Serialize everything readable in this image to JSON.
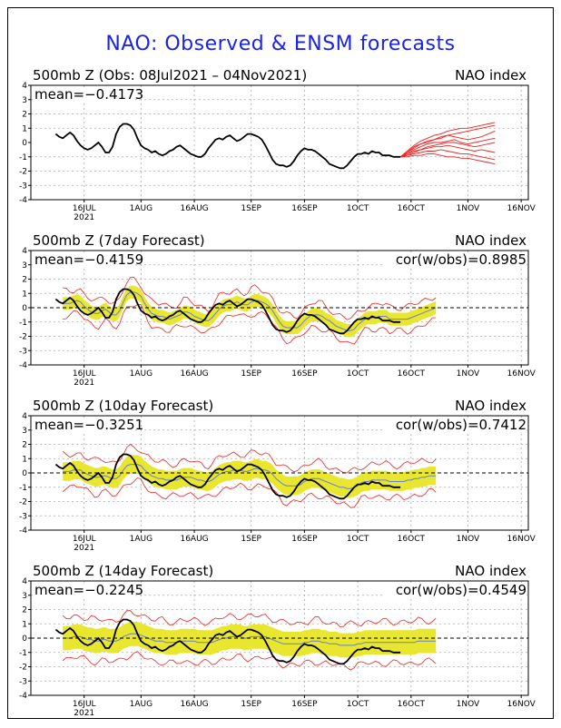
{
  "title": "NAO: Observed & ENSM forecasts",
  "colors": {
    "title": "#1a24e6",
    "observed": "#000000",
    "ensemble_spread": "#e8e62e",
    "ensemble_members": "#ee2222",
    "ensemble_mean": "#6a7fcf",
    "grid": "#aaaaaa"
  },
  "chart_data": [
    {
      "type": "line",
      "panel_title": "500mb  Z  (Obs: 08Jul2021 – 04Nov2021)",
      "right_label": "NAO index",
      "mean_label": "mean=−0.4173",
      "cor_label": "",
      "ylim": [
        -4,
        4
      ],
      "yticks": [
        4,
        3,
        2,
        1,
        0,
        -1,
        -2,
        -3,
        -4
      ],
      "xticks": [
        "16JUL",
        "1AUG",
        "16AUG",
        "1SEP",
        "16SEP",
        "1OCT",
        "16OCT",
        "1NOV",
        "16NOV"
      ],
      "year_label": "2021",
      "grid": true,
      "series": [
        {
          "values": [
            0.6,
            0.4,
            0.3,
            0.5,
            0.7,
            0.5,
            0.1,
            -0.2,
            -0.4,
            -0.5,
            -0.4,
            -0.2,
            0.0,
            -0.3,
            -0.7,
            -0.7,
            -0.3,
            0.6,
            1.1,
            1.3,
            1.3,
            1.2,
            0.9,
            0.3,
            -0.2,
            -0.4,
            -0.5,
            -0.7,
            -0.6,
            -0.8,
            -0.9,
            -0.8,
            -0.6,
            -0.5,
            -0.3,
            -0.2,
            -0.4,
            -0.6,
            -0.8,
            -0.9,
            -1.0,
            -1.0,
            -0.8,
            -0.4,
            -0.1,
            0.2,
            0.3,
            0.2,
            0.4,
            0.5,
            0.3,
            0.1,
            0.2,
            0.4,
            0.6,
            0.6,
            0.5,
            0.4,
            0.2,
            -0.2,
            -0.7,
            -1.2,
            -1.5,
            -1.6,
            -1.6,
            -1.7,
            -1.6,
            -1.3,
            -0.9,
            -0.6,
            -0.4,
            -0.5,
            -0.5,
            -0.6,
            -0.8,
            -1.0,
            -1.2,
            -1.5,
            -1.6,
            -1.7,
            -1.8,
            -1.8,
            -1.6,
            -1.3,
            -1.0,
            -0.8,
            -0.8,
            -0.7,
            -0.8,
            -0.6,
            -0.7,
            -0.7,
            -0.9,
            -0.9,
            -0.9,
            -1.0,
            -1.0,
            -1.0
          ]
        }
      ],
      "forecast_members": [
        [
          -1.0,
          -0.6,
          -0.2,
          0.1,
          0.3,
          0.5,
          0.6,
          0.8,
          0.9,
          1.0,
          1.0,
          1.1,
          1.2,
          1.3,
          1.4
        ],
        [
          -1.0,
          -0.7,
          -0.4,
          -0.1,
          0.1,
          0.2,
          0.3,
          0.5,
          0.6,
          0.7,
          0.8,
          0.9,
          1.0,
          1.1,
          1.2
        ],
        [
          -1.0,
          -0.7,
          -0.3,
          -0.1,
          0.0,
          0.2,
          0.4,
          0.5,
          0.4,
          0.3,
          0.2,
          0.3,
          0.4,
          0.6,
          0.8
        ],
        [
          -1.0,
          -0.8,
          -0.5,
          -0.3,
          -0.1,
          0.0,
          0.0,
          0.1,
          0.2,
          0.0,
          -0.1,
          0.0,
          0.1,
          0.2,
          0.3
        ],
        [
          -1.0,
          -0.8,
          -0.6,
          -0.5,
          -0.3,
          -0.2,
          -0.1,
          0.0,
          0.0,
          -0.1,
          -0.2,
          -0.3,
          -0.2,
          -0.1,
          0.0
        ],
        [
          -1.0,
          -0.9,
          -0.7,
          -0.5,
          -0.4,
          -0.3,
          -0.3,
          -0.2,
          -0.3,
          -0.4,
          -0.5,
          -0.6,
          -0.5,
          -0.6,
          -0.7
        ],
        [
          -1.0,
          -0.9,
          -0.8,
          -0.7,
          -0.6,
          -0.6,
          -0.5,
          -0.6,
          -0.7,
          -0.8,
          -0.8,
          -0.9,
          -1.0,
          -1.1,
          -1.2
        ],
        [
          -1.0,
          -1.0,
          -0.9,
          -0.9,
          -0.8,
          -0.8,
          -0.9,
          -1.0,
          -1.0,
          -1.1,
          -1.1,
          -1.2,
          -1.3,
          -1.4,
          -1.5
        ]
      ]
    },
    {
      "type": "line",
      "panel_title": "500mb  Z  (7day Forecast)",
      "right_label": "NAO index",
      "mean_label": "mean=−0.4159",
      "cor_label": "cor(w/obs)=0.8985",
      "ylim": [
        -4,
        4
      ],
      "yticks": [
        4,
        3,
        2,
        1,
        0,
        -1,
        -2,
        -3,
        -4
      ],
      "xticks": [
        "16JUL",
        "1AUG",
        "16AUG",
        "1SEP",
        "16SEP",
        "1OCT",
        "16OCT",
        "1NOV",
        "16NOV"
      ],
      "year_label": "2021",
      "grid": true,
      "series": [
        {
          "name": "observed",
          "values": [
            0.6,
            0.4,
            0.3,
            0.5,
            0.7,
            0.5,
            0.1,
            -0.2,
            -0.4,
            -0.5,
            -0.4,
            -0.2,
            0.0,
            -0.3,
            -0.7,
            -0.7,
            -0.3,
            0.6,
            1.1,
            1.3,
            1.3,
            1.2,
            0.9,
            0.3,
            -0.2,
            -0.4,
            -0.5,
            -0.7,
            -0.6,
            -0.8,
            -0.9,
            -0.8,
            -0.6,
            -0.5,
            -0.3,
            -0.2,
            -0.4,
            -0.6,
            -0.8,
            -0.9,
            -1.0,
            -1.0,
            -0.8,
            -0.4,
            -0.1,
            0.2,
            0.3,
            0.2,
            0.4,
            0.5,
            0.3,
            0.1,
            0.2,
            0.4,
            0.6,
            0.6,
            0.5,
            0.4,
            0.2,
            -0.2,
            -0.7,
            -1.2,
            -1.5,
            -1.6,
            -1.6,
            -1.7,
            -1.6,
            -1.3,
            -0.9,
            -0.6,
            -0.4,
            -0.5,
            -0.5,
            -0.6,
            -0.8,
            -1.0,
            -1.2,
            -1.5,
            -1.6,
            -1.7,
            -1.8,
            -1.8,
            -1.6,
            -1.3,
            -1.0,
            -0.8,
            -0.8,
            -0.7,
            -0.8,
            -0.6,
            -0.7,
            -0.7,
            -0.9,
            -0.9,
            -0.9,
            -1.0,
            -1.0,
            -1.0
          ]
        },
        {
          "name": "ensemble mean",
          "values": [
            0.3,
            0.3,
            0.3,
            0.4,
            0.5,
            0.4,
            0.1,
            -0.1,
            -0.3,
            -0.4,
            -0.4,
            -0.2,
            -0.1,
            -0.3,
            -0.5,
            -0.5,
            -0.2,
            0.4,
            0.9,
            1.1,
            1.1,
            1.0,
            0.8,
            0.3,
            -0.1,
            -0.4,
            -0.5,
            -0.6,
            -0.6,
            -0.7,
            -0.8,
            -0.7,
            -0.6,
            -0.5,
            -0.3,
            -0.3,
            -0.4,
            -0.6,
            -0.7,
            -0.8,
            -0.9,
            -0.9,
            -0.7,
            -0.4,
            -0.1,
            0.1,
            0.2,
            0.2,
            0.3,
            0.4,
            0.3,
            0.2,
            0.2,
            0.4,
            0.5,
            0.5,
            0.4,
            0.3,
            0.1,
            -0.2,
            -0.6,
            -1.0,
            -1.3,
            -1.4,
            -1.4,
            -1.4,
            -1.4,
            -1.2,
            -0.9,
            -0.7,
            -0.5,
            -0.5,
            -0.5,
            -0.6,
            -0.8,
            -0.9,
            -1.1,
            -1.3,
            -1.4,
            -1.5,
            -1.6,
            -1.6,
            -1.5,
            -1.2,
            -1.0,
            -0.8,
            -0.7,
            -0.7,
            -0.7,
            -0.6,
            -0.6,
            -0.6,
            -0.8,
            -0.8,
            -0.8,
            -0.8,
            -0.8,
            -0.8,
            -0.7,
            -0.6,
            -0.5,
            -0.4,
            -0.3,
            -0.2,
            -0.1,
            0.0
          ]
        }
      ],
      "spread_half_width": 0.45,
      "envelope_half_width": 0.85
    },
    {
      "type": "line",
      "panel_title": "500mb  Z  (10day Forecast)",
      "right_label": "NAO index",
      "mean_label": "mean=−0.3251",
      "cor_label": "cor(w/obs)=0.7412",
      "ylim": [
        -4,
        4
      ],
      "yticks": [
        4,
        3,
        2,
        1,
        0,
        -1,
        -2,
        -3,
        -4
      ],
      "xticks": [
        "16JUL",
        "1AUG",
        "16AUG",
        "1SEP",
        "16SEP",
        "1OCT",
        "16OCT",
        "1NOV",
        "16NOV"
      ],
      "year_label": "2021",
      "grid": true,
      "series": [
        {
          "name": "observed",
          "values": [
            0.6,
            0.4,
            0.3,
            0.5,
            0.7,
            0.5,
            0.1,
            -0.2,
            -0.4,
            -0.5,
            -0.4,
            -0.2,
            0.0,
            -0.3,
            -0.7,
            -0.7,
            -0.3,
            0.6,
            1.1,
            1.3,
            1.3,
            1.2,
            0.9,
            0.3,
            -0.2,
            -0.4,
            -0.5,
            -0.7,
            -0.6,
            -0.8,
            -0.9,
            -0.8,
            -0.6,
            -0.5,
            -0.3,
            -0.2,
            -0.4,
            -0.6,
            -0.8,
            -0.9,
            -1.0,
            -1.0,
            -0.8,
            -0.4,
            -0.1,
            0.2,
            0.3,
            0.2,
            0.4,
            0.5,
            0.3,
            0.1,
            0.2,
            0.4,
            0.6,
            0.6,
            0.5,
            0.4,
            0.2,
            -0.2,
            -0.7,
            -1.2,
            -1.5,
            -1.6,
            -1.6,
            -1.7,
            -1.6,
            -1.3,
            -0.9,
            -0.6,
            -0.4,
            -0.5,
            -0.5,
            -0.6,
            -0.8,
            -1.0,
            -1.2,
            -1.5,
            -1.6,
            -1.7,
            -1.8,
            -1.8,
            -1.6,
            -1.3,
            -1.0,
            -0.8,
            -0.8,
            -0.7,
            -0.8,
            -0.6,
            -0.7,
            -0.7,
            -0.9,
            -0.9,
            -0.9,
            -1.0,
            -1.0,
            -1.0
          ]
        },
        {
          "name": "ensemble mean",
          "values": [
            0.1,
            0.1,
            0.1,
            0.2,
            0.2,
            0.2,
            0.0,
            -0.1,
            -0.2,
            -0.3,
            -0.3,
            -0.2,
            -0.2,
            -0.3,
            -0.4,
            -0.4,
            -0.2,
            0.2,
            0.5,
            0.6,
            0.6,
            0.6,
            0.5,
            0.2,
            0.0,
            -0.2,
            -0.3,
            -0.4,
            -0.4,
            -0.5,
            -0.5,
            -0.5,
            -0.5,
            -0.4,
            -0.3,
            -0.3,
            -0.3,
            -0.4,
            -0.5,
            -0.5,
            -0.6,
            -0.6,
            -0.5,
            -0.3,
            -0.1,
            0.0,
            0.1,
            0.1,
            0.2,
            0.2,
            0.2,
            0.1,
            0.1,
            0.2,
            0.3,
            0.3,
            0.2,
            0.2,
            0.1,
            -0.1,
            -0.4,
            -0.6,
            -0.8,
            -0.9,
            -0.9,
            -0.9,
            -0.9,
            -0.8,
            -0.6,
            -0.5,
            -0.4,
            -0.4,
            -0.4,
            -0.5,
            -0.6,
            -0.7,
            -0.8,
            -0.9,
            -1.0,
            -1.0,
            -1.1,
            -1.1,
            -1.0,
            -0.9,
            -0.7,
            -0.6,
            -0.6,
            -0.5,
            -0.5,
            -0.5,
            -0.5,
            -0.5,
            -0.6,
            -0.6,
            -0.6,
            -0.6,
            -0.6,
            -0.5,
            -0.5,
            -0.4,
            -0.4,
            -0.3,
            -0.3,
            -0.2,
            -0.2,
            -0.2
          ]
        }
      ],
      "spread_half_width": 0.65,
      "envelope_half_width": 1.15
    },
    {
      "type": "line",
      "panel_title": "500mb  Z  (14day Forecast)",
      "right_label": "NAO index",
      "mean_label": "mean=−0.2245",
      "cor_label": "cor(w/obs)=0.4549",
      "ylim": [
        -4,
        4
      ],
      "yticks": [
        4,
        3,
        2,
        1,
        0,
        -1,
        -2,
        -3,
        -4
      ],
      "xticks": [
        "16JUL",
        "1AUG",
        "16AUG",
        "1SEP",
        "16SEP",
        "1OCT",
        "16OCT",
        "1NOV",
        "16NOV"
      ],
      "year_label": "2021",
      "grid": true,
      "series": [
        {
          "name": "observed",
          "values": [
            0.6,
            0.4,
            0.3,
            0.5,
            0.7,
            0.5,
            0.1,
            -0.2,
            -0.4,
            -0.5,
            -0.4,
            -0.2,
            0.0,
            -0.3,
            -0.7,
            -0.7,
            -0.3,
            0.6,
            1.1,
            1.3,
            1.3,
            1.2,
            0.9,
            0.3,
            -0.2,
            -0.4,
            -0.5,
            -0.7,
            -0.6,
            -0.8,
            -0.9,
            -0.8,
            -0.6,
            -0.5,
            -0.3,
            -0.2,
            -0.4,
            -0.6,
            -0.8,
            -0.9,
            -1.0,
            -1.0,
            -0.8,
            -0.4,
            -0.1,
            0.2,
            0.3,
            0.2,
            0.4,
            0.5,
            0.3,
            0.1,
            0.2,
            0.4,
            0.6,
            0.6,
            0.5,
            0.4,
            0.2,
            -0.2,
            -0.7,
            -1.2,
            -1.5,
            -1.6,
            -1.6,
            -1.7,
            -1.6,
            -1.3,
            -0.9,
            -0.6,
            -0.4,
            -0.5,
            -0.5,
            -0.6,
            -0.8,
            -1.0,
            -1.2,
            -1.5,
            -1.6,
            -1.7,
            -1.8,
            -1.8,
            -1.6,
            -1.3,
            -1.0,
            -0.8,
            -0.8,
            -0.7,
            -0.8,
            -0.6,
            -0.7,
            -0.7,
            -0.9,
            -0.9,
            -0.9,
            -1.0,
            -1.0,
            -1.0
          ]
        },
        {
          "name": "ensemble mean",
          "values": [
            0.0,
            0.0,
            0.0,
            0.1,
            0.1,
            0.1,
            0.0,
            -0.1,
            -0.1,
            -0.2,
            -0.2,
            -0.1,
            -0.1,
            -0.2,
            -0.2,
            -0.2,
            -0.1,
            0.1,
            0.2,
            0.3,
            0.3,
            0.3,
            0.2,
            0.1,
            0.0,
            -0.1,
            -0.2,
            -0.2,
            -0.2,
            -0.3,
            -0.3,
            -0.3,
            -0.3,
            -0.2,
            -0.2,
            -0.2,
            -0.2,
            -0.2,
            -0.3,
            -0.3,
            -0.3,
            -0.3,
            -0.3,
            -0.2,
            -0.1,
            0.0,
            0.0,
            0.1,
            0.1,
            0.1,
            0.1,
            0.0,
            0.0,
            0.1,
            0.1,
            0.1,
            0.1,
            0.1,
            0.0,
            -0.1,
            -0.2,
            -0.3,
            -0.4,
            -0.4,
            -0.4,
            -0.4,
            -0.4,
            -0.4,
            -0.3,
            -0.3,
            -0.2,
            -0.2,
            -0.2,
            -0.3,
            -0.3,
            -0.4,
            -0.4,
            -0.4,
            -0.5,
            -0.5,
            -0.5,
            -0.5,
            -0.5,
            -0.4,
            -0.4,
            -0.3,
            -0.3,
            -0.3,
            -0.3,
            -0.3,
            -0.3,
            -0.3,
            -0.3,
            -0.3,
            -0.3,
            -0.3,
            -0.3,
            -0.3,
            -0.3,
            -0.3,
            -0.2,
            -0.2,
            -0.2,
            -0.2,
            -0.2,
            -0.2
          ]
        }
      ],
      "spread_half_width": 0.85,
      "envelope_half_width": 1.45
    }
  ]
}
